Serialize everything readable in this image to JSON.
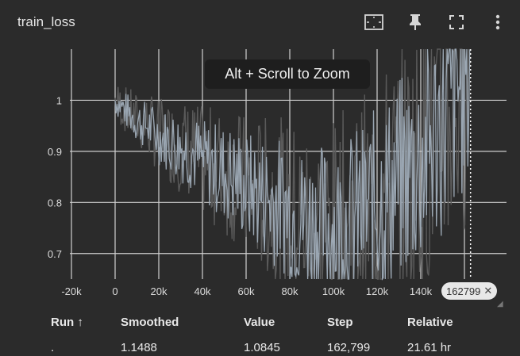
{
  "card": {
    "title": "train_loss",
    "tooltip": "Alt + Scroll to Zoom",
    "step_badge": "162799",
    "icons": [
      "fit-domain-icon",
      "pin-icon",
      "fullscreen-icon",
      "more-vert-icon"
    ]
  },
  "table": {
    "headers": {
      "run": "Run ↑",
      "smoothed": "Smoothed",
      "value": "Value",
      "step": "Step",
      "relative": "Relative"
    },
    "row": {
      "run": ".",
      "smoothed": "1.1488",
      "value": "1.0845",
      "step": "162,799",
      "relative": "21.61 hr"
    }
  },
  "chart_data": {
    "type": "line",
    "title": "train_loss",
    "xlabel": "",
    "ylabel": "",
    "xlim": [
      -20000,
      180000
    ],
    "ylim": [
      0.65,
      1.1
    ],
    "x_ticks": [
      "-20k",
      "0",
      "20k",
      "40k",
      "60k",
      "80k",
      "100k",
      "120k",
      "140k"
    ],
    "x_tick_values": [
      -20000,
      0,
      20000,
      40000,
      60000,
      80000,
      100000,
      120000,
      140000
    ],
    "y_ticks": [
      "0.7",
      "0.8",
      "0.9",
      "1"
    ],
    "y_tick_values": [
      0.7,
      0.8,
      0.9,
      1.0
    ],
    "hover_step": 162799,
    "grid": true,
    "colors": {
      "raw": "#9aa6b2",
      "raw_dim": "#5a5a5a",
      "grid": "#cfcfcf"
    },
    "series": [
      {
        "x": [
          0,
          5000,
          10000,
          15000,
          20000,
          25000,
          30000,
          35000,
          40000,
          45000,
          50000,
          55000,
          60000,
          65000,
          70000,
          75000,
          80000,
          85000,
          90000,
          95000,
          100000,
          105000,
          110000,
          115000,
          120000,
          125000,
          130000,
          135000,
          140000,
          145000,
          150000,
          155000,
          160000,
          162799
        ],
        "values": [
          1.0,
          0.98,
          0.96,
          0.95,
          0.93,
          0.92,
          0.91,
          0.9,
          0.88,
          0.87,
          0.86,
          0.85,
          0.83,
          0.82,
          0.81,
          0.8,
          0.78,
          0.77,
          0.76,
          0.76,
          0.75,
          0.76,
          0.77,
          0.78,
          0.8,
          0.82,
          0.84,
          0.86,
          0.88,
          0.92,
          0.96,
          1.0,
          1.06,
          1.08
        ]
      }
    ]
  }
}
